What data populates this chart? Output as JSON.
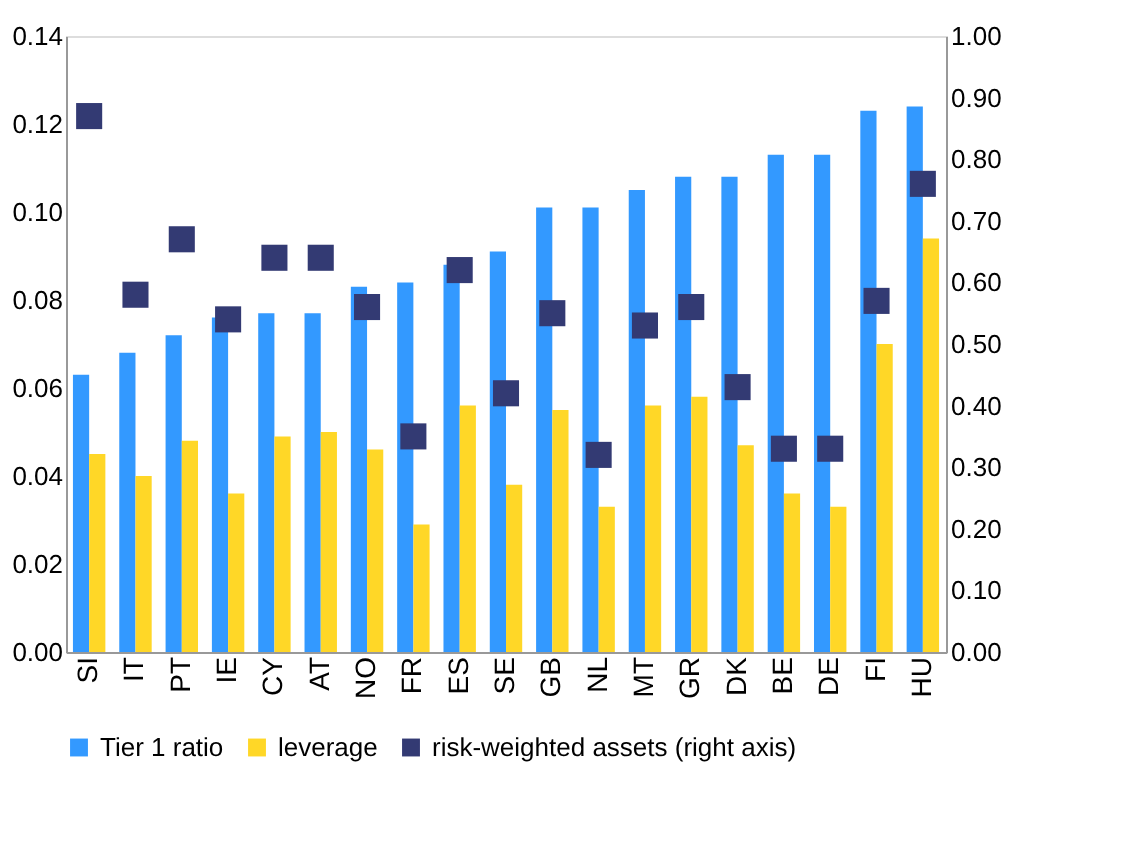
{
  "chart_data": {
    "type": "bar",
    "categories": [
      "SI",
      "IT",
      "PT",
      "IE",
      "CY",
      "AT",
      "NO",
      "FR",
      "ES",
      "SE",
      "GB",
      "NL",
      "MT",
      "GR",
      "DK",
      "BE",
      "DE",
      "FI",
      "HU"
    ],
    "series": [
      {
        "name": "Tier 1 ratio",
        "color": "#3399ff",
        "values": [
          0.063,
          0.068,
          0.072,
          0.076,
          0.077,
          0.077,
          0.083,
          0.084,
          0.088,
          0.091,
          0.101,
          0.101,
          0.105,
          0.108,
          0.108,
          0.113,
          0.113,
          0.123,
          0.124
        ]
      },
      {
        "name": "leverage",
        "color": "#ffd727",
        "values": [
          0.045,
          0.04,
          0.048,
          0.036,
          0.049,
          0.05,
          0.046,
          0.029,
          0.056,
          0.038,
          0.055,
          0.033,
          0.056,
          0.058,
          0.047,
          0.036,
          0.033,
          0.07,
          0.094
        ]
      },
      {
        "name": "risk-weighted assets (right axis)",
        "color": "#333a73",
        "type": "scatter",
        "axis": "y2",
        "marker": "square",
        "values": [
          0.87,
          0.58,
          0.67,
          0.54,
          0.64,
          0.64,
          0.56,
          0.35,
          0.62,
          0.42,
          0.55,
          0.32,
          0.53,
          0.56,
          0.43,
          0.33,
          0.33,
          0.57,
          0.76
        ]
      }
    ],
    "ylim": [
      0,
      0.14
    ],
    "yticks": [
      {
        "value": 0,
        "label": "0.00"
      },
      {
        "value": 0.02,
        "label": "0.02"
      },
      {
        "value": 0.04,
        "label": "0.04"
      },
      {
        "value": 0.06,
        "label": "0.06"
      },
      {
        "value": 0.08,
        "label": "0.08"
      },
      {
        "value": 0.1,
        "label": "0.10"
      },
      {
        "value": 0.12,
        "label": "0.12"
      },
      {
        "value": 0.14,
        "label": "0.14"
      }
    ],
    "y2lim": [
      0,
      1
    ],
    "y2ticks": [
      {
        "value": 0,
        "label": "0.00"
      },
      {
        "value": 0.1,
        "label": "0.10"
      },
      {
        "value": 0.2,
        "label": "0.20"
      },
      {
        "value": 0.3,
        "label": "0.30"
      },
      {
        "value": 0.4,
        "label": "0.40"
      },
      {
        "value": 0.5,
        "label": "0.50"
      },
      {
        "value": 0.6,
        "label": "0.60"
      },
      {
        "value": 0.7,
        "label": "0.70"
      },
      {
        "value": 0.8,
        "label": "0.80"
      },
      {
        "value": 0.9,
        "label": "0.90"
      },
      {
        "value": 1,
        "label": "1.00"
      }
    ],
    "grid": false,
    "legend": "bottom"
  }
}
